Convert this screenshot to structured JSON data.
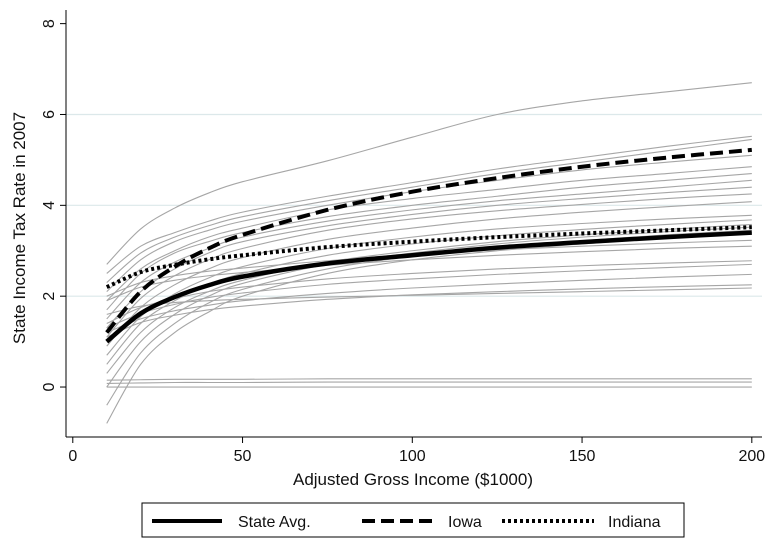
{
  "chart_data": {
    "type": "line",
    "xlabel": "Adjusted Gross Income ($1000)",
    "ylabel": "State Income Tax Rate in 2007",
    "xlim": [
      -2,
      203
    ],
    "ylim": [
      -1.1,
      8.3
    ],
    "x_ticks": [
      0,
      50,
      100,
      150,
      200
    ],
    "x_tick_labels": [
      "0",
      "50",
      "100",
      "150",
      "200"
    ],
    "y_ticks": [
      0,
      2,
      4,
      6,
      8
    ],
    "y_tick_labels": [
      "0",
      "2",
      "4",
      "6",
      "8"
    ],
    "grid": "horizontal",
    "legend_position": "bottom",
    "x": [
      10,
      20,
      30,
      40,
      50,
      75,
      100,
      125,
      150,
      175,
      200
    ],
    "series": [
      {
        "name": "State Avg.",
        "style": "solid-bold",
        "color": "#000000",
        "values": [
          1.0,
          1.62,
          1.98,
          2.24,
          2.43,
          2.72,
          2.9,
          3.07,
          3.19,
          3.3,
          3.4
        ]
      },
      {
        "name": "Iowa",
        "style": "dashed-bold",
        "color": "#000000",
        "values": [
          1.2,
          2.1,
          2.65,
          3.05,
          3.35,
          3.9,
          4.3,
          4.6,
          4.85,
          5.05,
          5.22
        ]
      },
      {
        "name": "Indiana",
        "style": "dotted-bold",
        "color": "#000000",
        "values": [
          2.2,
          2.53,
          2.69,
          2.81,
          2.9,
          3.08,
          3.2,
          3.3,
          3.38,
          3.45,
          3.52
        ]
      }
    ],
    "background_series": {
      "color": "#a6a6a6",
      "values": [
        [
          2.7,
          3.48,
          3.94,
          4.27,
          4.52,
          4.98,
          5.5,
          6.0,
          6.3,
          6.5,
          6.7
        ],
        [
          2.5,
          3.1,
          3.4,
          3.65,
          3.85,
          4.2,
          4.5,
          4.8,
          5.05,
          5.3,
          5.52
        ],
        [
          2.3,
          2.95,
          3.3,
          3.55,
          3.75,
          4.1,
          4.4,
          4.7,
          4.95,
          5.2,
          5.45
        ],
        [
          2.1,
          2.8,
          3.2,
          3.45,
          3.65,
          4.0,
          4.3,
          4.55,
          4.78,
          4.95,
          5.1
        ],
        [
          1.9,
          2.6,
          3.0,
          3.3,
          3.5,
          3.9,
          4.15,
          4.35,
          4.55,
          4.7,
          4.85
        ],
        [
          1.7,
          2.5,
          2.95,
          3.2,
          3.4,
          3.75,
          4.0,
          4.2,
          4.4,
          4.55,
          4.7
        ],
        [
          1.5,
          2.3,
          2.75,
          3.05,
          3.3,
          3.65,
          3.9,
          4.1,
          4.25,
          4.4,
          4.55
        ],
        [
          1.3,
          2.1,
          2.6,
          2.95,
          3.2,
          3.55,
          3.8,
          4.0,
          4.15,
          4.28,
          4.4
        ],
        [
          1.1,
          1.95,
          2.45,
          2.8,
          3.05,
          3.45,
          3.7,
          3.88,
          4.02,
          4.15,
          4.25
        ],
        [
          0.9,
          1.75,
          2.25,
          2.6,
          2.85,
          3.25,
          3.5,
          3.7,
          3.85,
          3.97,
          4.08
        ],
        [
          0.7,
          1.55,
          2.05,
          2.4,
          2.65,
          3.05,
          3.3,
          3.48,
          3.6,
          3.7,
          3.78
        ],
        [
          0.5,
          1.4,
          1.9,
          2.25,
          2.5,
          2.9,
          3.15,
          3.33,
          3.47,
          3.58,
          3.68
        ],
        [
          0.3,
          1.2,
          1.75,
          2.1,
          2.35,
          2.75,
          3.0,
          3.2,
          3.35,
          3.47,
          3.58
        ],
        [
          0.0,
          1.0,
          1.6,
          2.0,
          2.28,
          2.7,
          2.95,
          3.15,
          3.3,
          3.42,
          3.52
        ],
        [
          -0.4,
          0.75,
          1.4,
          1.85,
          2.15,
          2.6,
          2.88,
          3.08,
          3.22,
          3.35,
          3.45
        ],
        [
          -0.8,
          0.5,
          1.2,
          1.65,
          2.0,
          2.5,
          2.8,
          3.0,
          3.15,
          3.28,
          3.4
        ],
        [
          2.0,
          2.3,
          2.45,
          2.55,
          2.62,
          2.78,
          2.92,
          3.02,
          3.1,
          3.17,
          3.23
        ],
        [
          1.9,
          2.2,
          2.35,
          2.45,
          2.52,
          2.68,
          2.8,
          2.9,
          2.98,
          3.05,
          3.1
        ],
        [
          1.4,
          1.75,
          1.95,
          2.1,
          2.2,
          2.38,
          2.5,
          2.6,
          2.67,
          2.73,
          2.78
        ],
        [
          1.3,
          1.62,
          1.82,
          1.97,
          2.07,
          2.26,
          2.38,
          2.48,
          2.56,
          2.63,
          2.7
        ],
        [
          1.2,
          1.5,
          1.68,
          1.8,
          1.9,
          2.06,
          2.18,
          2.27,
          2.35,
          2.42,
          2.48
        ],
        [
          1.1,
          1.42,
          1.58,
          1.7,
          1.78,
          1.93,
          2.03,
          2.1,
          2.16,
          2.21,
          2.25
        ],
        [
          1.6,
          1.78,
          1.86,
          1.9,
          1.93,
          1.98,
          2.02,
          2.06,
          2.1,
          2.14,
          2.18
        ],
        [
          0.15,
          0.16,
          0.17,
          0.17,
          0.17,
          0.18,
          0.18,
          0.18,
          0.18,
          0.18,
          0.18
        ],
        [
          0.08,
          0.09,
          0.1,
          0.1,
          0.1,
          0.11,
          0.11,
          0.11,
          0.11,
          0.11,
          0.11
        ],
        [
          0.0,
          0.0,
          0.0,
          0.0,
          0.0,
          0.0,
          0.0,
          0.0,
          0.0,
          0.0,
          0.0
        ]
      ]
    }
  }
}
